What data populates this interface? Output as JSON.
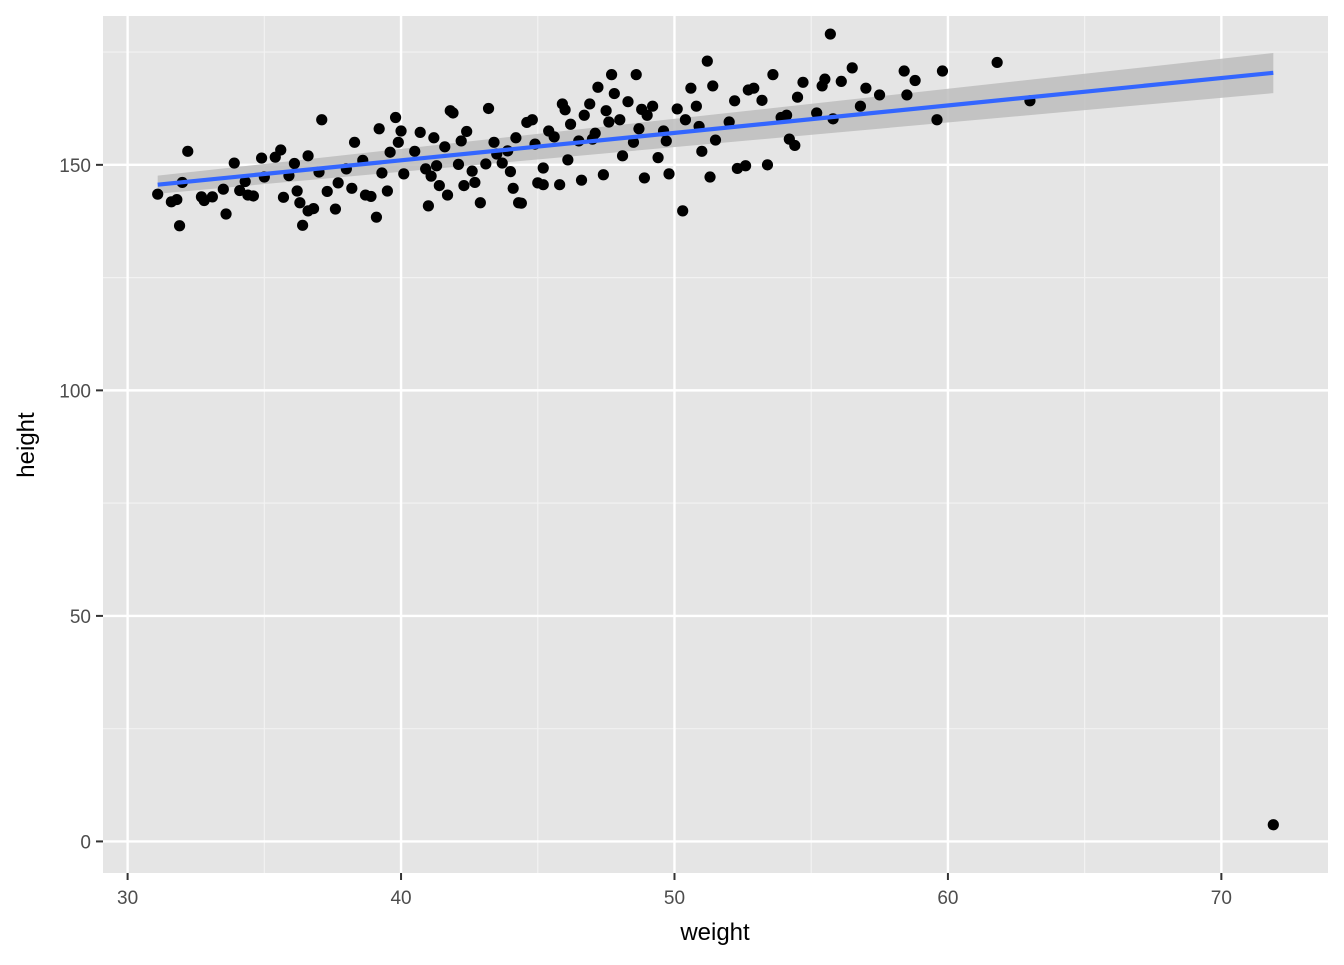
{
  "chart_data": {
    "type": "scatter",
    "title": "",
    "xlabel": "weight",
    "ylabel": "height",
    "xlim": [
      29.1,
      73.9
    ],
    "ylim": [
      -7,
      183
    ],
    "x_ticks": [
      30,
      40,
      50,
      60,
      70
    ],
    "y_ticks": [
      0,
      50,
      100,
      150
    ],
    "grid": true,
    "legend": "none",
    "colors": {
      "panel_background": "#e5e5e5",
      "grid_major": "#ffffff",
      "grid_minor": "#f2f2f2",
      "points": "#000000",
      "smooth_line": "#3366ff",
      "confidence_band": "#bdbdbd"
    },
    "series": [
      {
        "kind": "points",
        "points": [
          [
            31.1,
            143.5
          ],
          [
            31.6,
            141.8
          ],
          [
            31.8,
            142.3
          ],
          [
            32.0,
            146.1
          ],
          [
            31.9,
            136.5
          ],
          [
            32.2,
            153.0
          ],
          [
            32.7,
            142.9
          ],
          [
            32.8,
            142.1
          ],
          [
            33.1,
            142.9
          ],
          [
            33.5,
            144.6
          ],
          [
            33.6,
            139.1
          ],
          [
            33.9,
            150.4
          ],
          [
            34.1,
            144.3
          ],
          [
            34.3,
            146.3
          ],
          [
            34.4,
            143.3
          ],
          [
            34.6,
            143.1
          ],
          [
            34.9,
            151.5
          ],
          [
            35.0,
            147.3
          ],
          [
            35.4,
            151.7
          ],
          [
            35.6,
            153.3
          ],
          [
            35.7,
            142.8
          ],
          [
            35.9,
            147.6
          ],
          [
            36.1,
            150.3
          ],
          [
            36.2,
            144.2
          ],
          [
            36.3,
            141.6
          ],
          [
            36.4,
            136.6
          ],
          [
            36.6,
            152.0
          ],
          [
            36.6,
            139.8
          ],
          [
            36.8,
            140.3
          ],
          [
            37.0,
            148.4
          ],
          [
            37.1,
            160.0
          ],
          [
            37.3,
            144.1
          ],
          [
            37.6,
            140.2
          ],
          [
            37.7,
            146.0
          ],
          [
            38.0,
            149.1
          ],
          [
            38.2,
            144.8
          ],
          [
            38.3,
            155.0
          ],
          [
            38.6,
            151.0
          ],
          [
            38.7,
            143.3
          ],
          [
            38.9,
            143.0
          ],
          [
            39.1,
            138.4
          ],
          [
            39.2,
            158.0
          ],
          [
            39.3,
            148.2
          ],
          [
            39.5,
            144.2
          ],
          [
            39.6,
            152.8
          ],
          [
            39.8,
            160.5
          ],
          [
            39.9,
            155.0
          ],
          [
            40.0,
            157.5
          ],
          [
            40.1,
            148.0
          ],
          [
            40.5,
            153.0
          ],
          [
            40.7,
            157.2
          ],
          [
            40.9,
            149.1
          ],
          [
            41.0,
            140.9
          ],
          [
            41.1,
            147.5
          ],
          [
            41.2,
            156.0
          ],
          [
            41.3,
            149.8
          ],
          [
            41.4,
            145.4
          ],
          [
            41.6,
            154.0
          ],
          [
            41.7,
            143.3
          ],
          [
            41.8,
            162.0
          ],
          [
            41.9,
            161.5
          ],
          [
            42.1,
            150.1
          ],
          [
            42.2,
            155.3
          ],
          [
            42.3,
            145.4
          ],
          [
            42.4,
            157.4
          ],
          [
            42.6,
            148.6
          ],
          [
            42.7,
            146.1
          ],
          [
            42.9,
            141.6
          ],
          [
            43.1,
            150.2
          ],
          [
            43.2,
            162.5
          ],
          [
            43.4,
            155.0
          ],
          [
            43.5,
            152.4
          ],
          [
            43.7,
            150.4
          ],
          [
            43.9,
            153.1
          ],
          [
            44.0,
            148.5
          ],
          [
            44.1,
            144.8
          ],
          [
            44.2,
            156.0
          ],
          [
            44.3,
            141.6
          ],
          [
            44.4,
            141.5
          ],
          [
            44.6,
            159.4
          ],
          [
            44.8,
            160.0
          ],
          [
            44.9,
            154.6
          ],
          [
            45.0,
            146.0
          ],
          [
            45.2,
            145.6
          ],
          [
            45.2,
            149.3
          ],
          [
            45.4,
            157.5
          ],
          [
            45.6,
            156.2
          ],
          [
            45.8,
            145.6
          ],
          [
            45.9,
            163.5
          ],
          [
            46.0,
            162.2
          ],
          [
            46.1,
            151.1
          ],
          [
            46.2,
            159.0
          ],
          [
            46.5,
            155.3
          ],
          [
            46.6,
            146.6
          ],
          [
            46.7,
            161.0
          ],
          [
            46.9,
            163.5
          ],
          [
            47.0,
            155.7
          ],
          [
            47.1,
            157.0
          ],
          [
            47.2,
            167.2
          ],
          [
            47.4,
            147.8
          ],
          [
            47.5,
            162.0
          ],
          [
            47.6,
            159.5
          ],
          [
            47.7,
            170.0
          ],
          [
            47.8,
            165.8
          ],
          [
            48.0,
            160.0
          ],
          [
            48.1,
            152.0
          ],
          [
            48.3,
            164.0
          ],
          [
            48.5,
            155.0
          ],
          [
            48.6,
            170.0
          ],
          [
            48.7,
            158.0
          ],
          [
            48.8,
            162.3
          ],
          [
            48.9,
            147.1
          ],
          [
            49.0,
            161.0
          ],
          [
            49.2,
            163.0
          ],
          [
            49.4,
            151.6
          ],
          [
            49.6,
            157.5
          ],
          [
            49.7,
            155.3
          ],
          [
            49.8,
            148.0
          ],
          [
            50.1,
            162.4
          ],
          [
            50.3,
            139.8
          ],
          [
            50.4,
            160.0
          ],
          [
            50.6,
            167.0
          ],
          [
            50.8,
            163.0
          ],
          [
            50.9,
            158.5
          ],
          [
            51.0,
            153.0
          ],
          [
            51.2,
            173.0
          ],
          [
            51.3,
            147.3
          ],
          [
            51.4,
            167.5
          ],
          [
            51.5,
            155.5
          ],
          [
            52.0,
            159.5
          ],
          [
            52.2,
            164.2
          ],
          [
            52.3,
            149.2
          ],
          [
            52.6,
            149.8
          ],
          [
            52.7,
            166.6
          ],
          [
            52.9,
            167.0
          ],
          [
            53.2,
            164.3
          ],
          [
            53.4,
            150.0
          ],
          [
            53.6,
            170.0
          ],
          [
            53.9,
            160.5
          ],
          [
            54.1,
            161.0
          ],
          [
            54.2,
            155.7
          ],
          [
            54.4,
            154.3
          ],
          [
            54.5,
            165.0
          ],
          [
            54.7,
            168.3
          ],
          [
            55.2,
            161.5
          ],
          [
            55.4,
            167.5
          ],
          [
            55.5,
            169.0
          ],
          [
            55.7,
            179.0
          ],
          [
            55.8,
            160.2
          ],
          [
            56.1,
            168.5
          ],
          [
            56.5,
            171.5
          ],
          [
            56.8,
            163.0
          ],
          [
            57.0,
            167.0
          ],
          [
            57.5,
            165.5
          ],
          [
            58.4,
            170.8
          ],
          [
            58.5,
            165.5
          ],
          [
            58.8,
            168.7
          ],
          [
            59.6,
            160.0
          ],
          [
            59.8,
            170.8
          ],
          [
            61.8,
            172.7
          ],
          [
            63.0,
            164.2
          ],
          [
            71.9,
            3.7
          ]
        ]
      },
      {
        "kind": "lm_fit",
        "line": [
          [
            31.1,
            145.6
          ],
          [
            71.9,
            170.4
          ]
        ],
        "band_upper": [
          [
            31.1,
            147.6
          ],
          [
            71.9,
            174.8
          ]
        ],
        "band_lower": [
          [
            31.1,
            143.6
          ],
          [
            71.9,
            165.9
          ]
        ]
      }
    ]
  }
}
